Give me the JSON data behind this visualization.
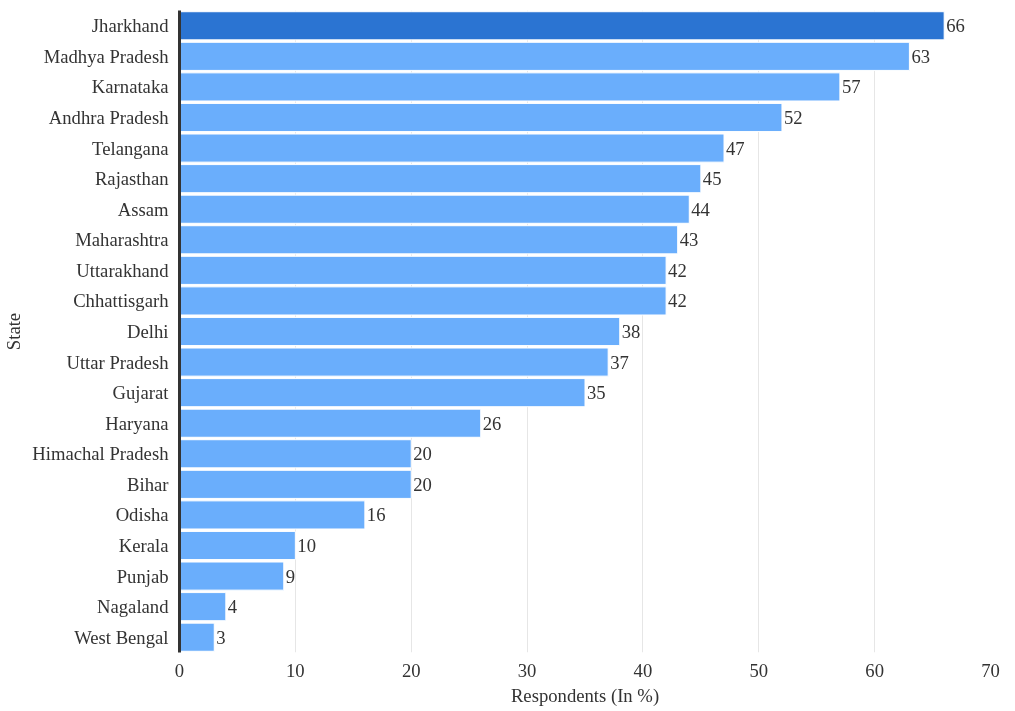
{
  "chart_data": {
    "type": "bar",
    "orientation": "horizontal",
    "xlabel": "Respondents (In %)",
    "ylabel": "State",
    "categories": [
      "Jharkhand",
      "Madhya Pradesh",
      "Karnataka",
      "Andhra Pradesh",
      "Telangana",
      "Rajasthan",
      "Assam",
      "Maharashtra",
      "Uttarakhand",
      "Chhattisgarh",
      "Delhi",
      "Uttar Pradesh",
      "Gujarat",
      "Haryana",
      "Himachal Pradesh",
      "Bihar",
      "Odisha",
      "Kerala",
      "Punjab",
      "Nagaland",
      "West Bengal"
    ],
    "values": [
      66,
      63,
      57,
      52,
      47,
      45,
      44,
      43,
      42,
      42,
      38,
      37,
      35,
      26,
      20,
      20,
      16,
      10,
      9,
      4,
      3
    ],
    "colors": [
      "#2b74d2",
      "#6aaefc",
      "#6aaefc",
      "#6aaefc",
      "#6aaefc",
      "#6aaefc",
      "#6aaefc",
      "#6aaefc",
      "#6aaefc",
      "#6aaefc",
      "#6aaefc",
      "#6aaefc",
      "#6aaefc",
      "#6aaefc",
      "#6aaefc",
      "#6aaefc",
      "#6aaefc",
      "#6aaefc",
      "#6aaefc",
      "#6aaefc",
      "#6aaefc"
    ],
    "xlim": [
      0,
      70
    ],
    "xticks": [
      0,
      10,
      20,
      30,
      40,
      50,
      60,
      70
    ],
    "grid": "x",
    "data_labels": true
  }
}
